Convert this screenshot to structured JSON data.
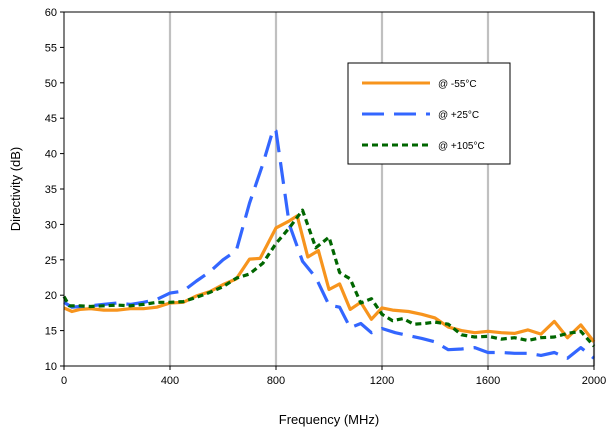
{
  "chart_data": {
    "type": "line",
    "title": "",
    "xlabel": "Frequency (MHz)",
    "ylabel": "Directivity (dB)",
    "xlim": [
      0,
      2000
    ],
    "ylim": [
      10,
      60
    ],
    "x_ticks": [
      0,
      400,
      800,
      1200,
      1600,
      2000
    ],
    "y_ticks": [
      10,
      15,
      20,
      25,
      30,
      35,
      40,
      45,
      50,
      55,
      60
    ],
    "grid": "vertical",
    "legend_position": "top-right",
    "series": [
      {
        "name": "@ -55°C",
        "color": "#F7941D",
        "dash": "solid",
        "points": [
          [
            0,
            18.2
          ],
          [
            30,
            17.7
          ],
          [
            60,
            18.0
          ],
          [
            100,
            18.1
          ],
          [
            150,
            17.9
          ],
          [
            200,
            17.9
          ],
          [
            250,
            18.1
          ],
          [
            300,
            18.1
          ],
          [
            350,
            18.3
          ],
          [
            400,
            18.9
          ],
          [
            450,
            19.0
          ],
          [
            500,
            19.9
          ],
          [
            550,
            20.5
          ],
          [
            600,
            21.5
          ],
          [
            650,
            22.3
          ],
          [
            700,
            25.1
          ],
          [
            740,
            25.2
          ],
          [
            800,
            29.5
          ],
          [
            850,
            30.5
          ],
          [
            880,
            31.2
          ],
          [
            920,
            25.4
          ],
          [
            960,
            26.3
          ],
          [
            1000,
            20.8
          ],
          [
            1040,
            21.6
          ],
          [
            1080,
            18.0
          ],
          [
            1120,
            19.0
          ],
          [
            1160,
            16.6
          ],
          [
            1200,
            18.2
          ],
          [
            1240,
            17.9
          ],
          [
            1300,
            17.7
          ],
          [
            1350,
            17.3
          ],
          [
            1400,
            16.8
          ],
          [
            1450,
            15.5
          ],
          [
            1500,
            15.0
          ],
          [
            1550,
            14.7
          ],
          [
            1600,
            14.9
          ],
          [
            1650,
            14.7
          ],
          [
            1700,
            14.6
          ],
          [
            1750,
            15.1
          ],
          [
            1800,
            14.5
          ],
          [
            1850,
            16.3
          ],
          [
            1900,
            14.0
          ],
          [
            1950,
            15.8
          ],
          [
            2000,
            13.4
          ]
        ]
      },
      {
        "name": "@ +25°C",
        "color": "#3366FF",
        "dash": "long-dash",
        "points": [
          [
            0,
            19.0
          ],
          [
            30,
            18.3
          ],
          [
            60,
            18.4
          ],
          [
            100,
            18.5
          ],
          [
            150,
            18.7
          ],
          [
            200,
            18.9
          ],
          [
            250,
            18.7
          ],
          [
            300,
            19.0
          ],
          [
            350,
            19.4
          ],
          [
            400,
            20.3
          ],
          [
            450,
            20.6
          ],
          [
            500,
            22.0
          ],
          [
            550,
            23.3
          ],
          [
            600,
            25.0
          ],
          [
            650,
            26.3
          ],
          [
            700,
            33.0
          ],
          [
            750,
            38.5
          ],
          [
            790,
            43.5
          ],
          [
            800,
            43.2
          ],
          [
            850,
            30.0
          ],
          [
            900,
            24.8
          ],
          [
            950,
            22.5
          ],
          [
            1000,
            18.6
          ],
          [
            1040,
            18.3
          ],
          [
            1080,
            15.4
          ],
          [
            1120,
            16.0
          ],
          [
            1160,
            14.7
          ],
          [
            1200,
            15.3
          ],
          [
            1250,
            14.7
          ],
          [
            1300,
            14.3
          ],
          [
            1350,
            13.9
          ],
          [
            1400,
            13.4
          ],
          [
            1450,
            12.3
          ],
          [
            1500,
            12.4
          ],
          [
            1550,
            12.6
          ],
          [
            1600,
            11.9
          ],
          [
            1650,
            11.9
          ],
          [
            1700,
            11.8
          ],
          [
            1750,
            11.8
          ],
          [
            1800,
            11.5
          ],
          [
            1850,
            11.9
          ],
          [
            1900,
            11.1
          ],
          [
            1950,
            12.6
          ],
          [
            2000,
            11.1
          ]
        ]
      },
      {
        "name": "@ +105°C",
        "color": "#006600",
        "dash": "short-dash",
        "points": [
          [
            0,
            19.8
          ],
          [
            20,
            18.5
          ],
          [
            60,
            18.5
          ],
          [
            100,
            18.4
          ],
          [
            150,
            18.5
          ],
          [
            200,
            18.6
          ],
          [
            250,
            18.5
          ],
          [
            300,
            18.7
          ],
          [
            350,
            19.0
          ],
          [
            400,
            19.0
          ],
          [
            450,
            19.1
          ],
          [
            500,
            19.7
          ],
          [
            550,
            20.4
          ],
          [
            600,
            21.2
          ],
          [
            650,
            22.4
          ],
          [
            700,
            23.0
          ],
          [
            750,
            24.5
          ],
          [
            800,
            27.3
          ],
          [
            850,
            29.5
          ],
          [
            900,
            32.0
          ],
          [
            950,
            26.7
          ],
          [
            1000,
            28.2
          ],
          [
            1040,
            23.2
          ],
          [
            1080,
            22.3
          ],
          [
            1120,
            18.9
          ],
          [
            1160,
            19.5
          ],
          [
            1200,
            17.3
          ],
          [
            1240,
            16.4
          ],
          [
            1280,
            16.7
          ],
          [
            1320,
            15.9
          ],
          [
            1360,
            16.0
          ],
          [
            1400,
            16.2
          ],
          [
            1450,
            15.9
          ],
          [
            1500,
            14.4
          ],
          [
            1550,
            14.1
          ],
          [
            1600,
            14.2
          ],
          [
            1650,
            13.8
          ],
          [
            1700,
            14.0
          ],
          [
            1750,
            13.6
          ],
          [
            1800,
            14.0
          ],
          [
            1850,
            14.1
          ],
          [
            1900,
            14.6
          ],
          [
            1950,
            14.9
          ],
          [
            2000,
            12.8
          ]
        ]
      }
    ]
  }
}
